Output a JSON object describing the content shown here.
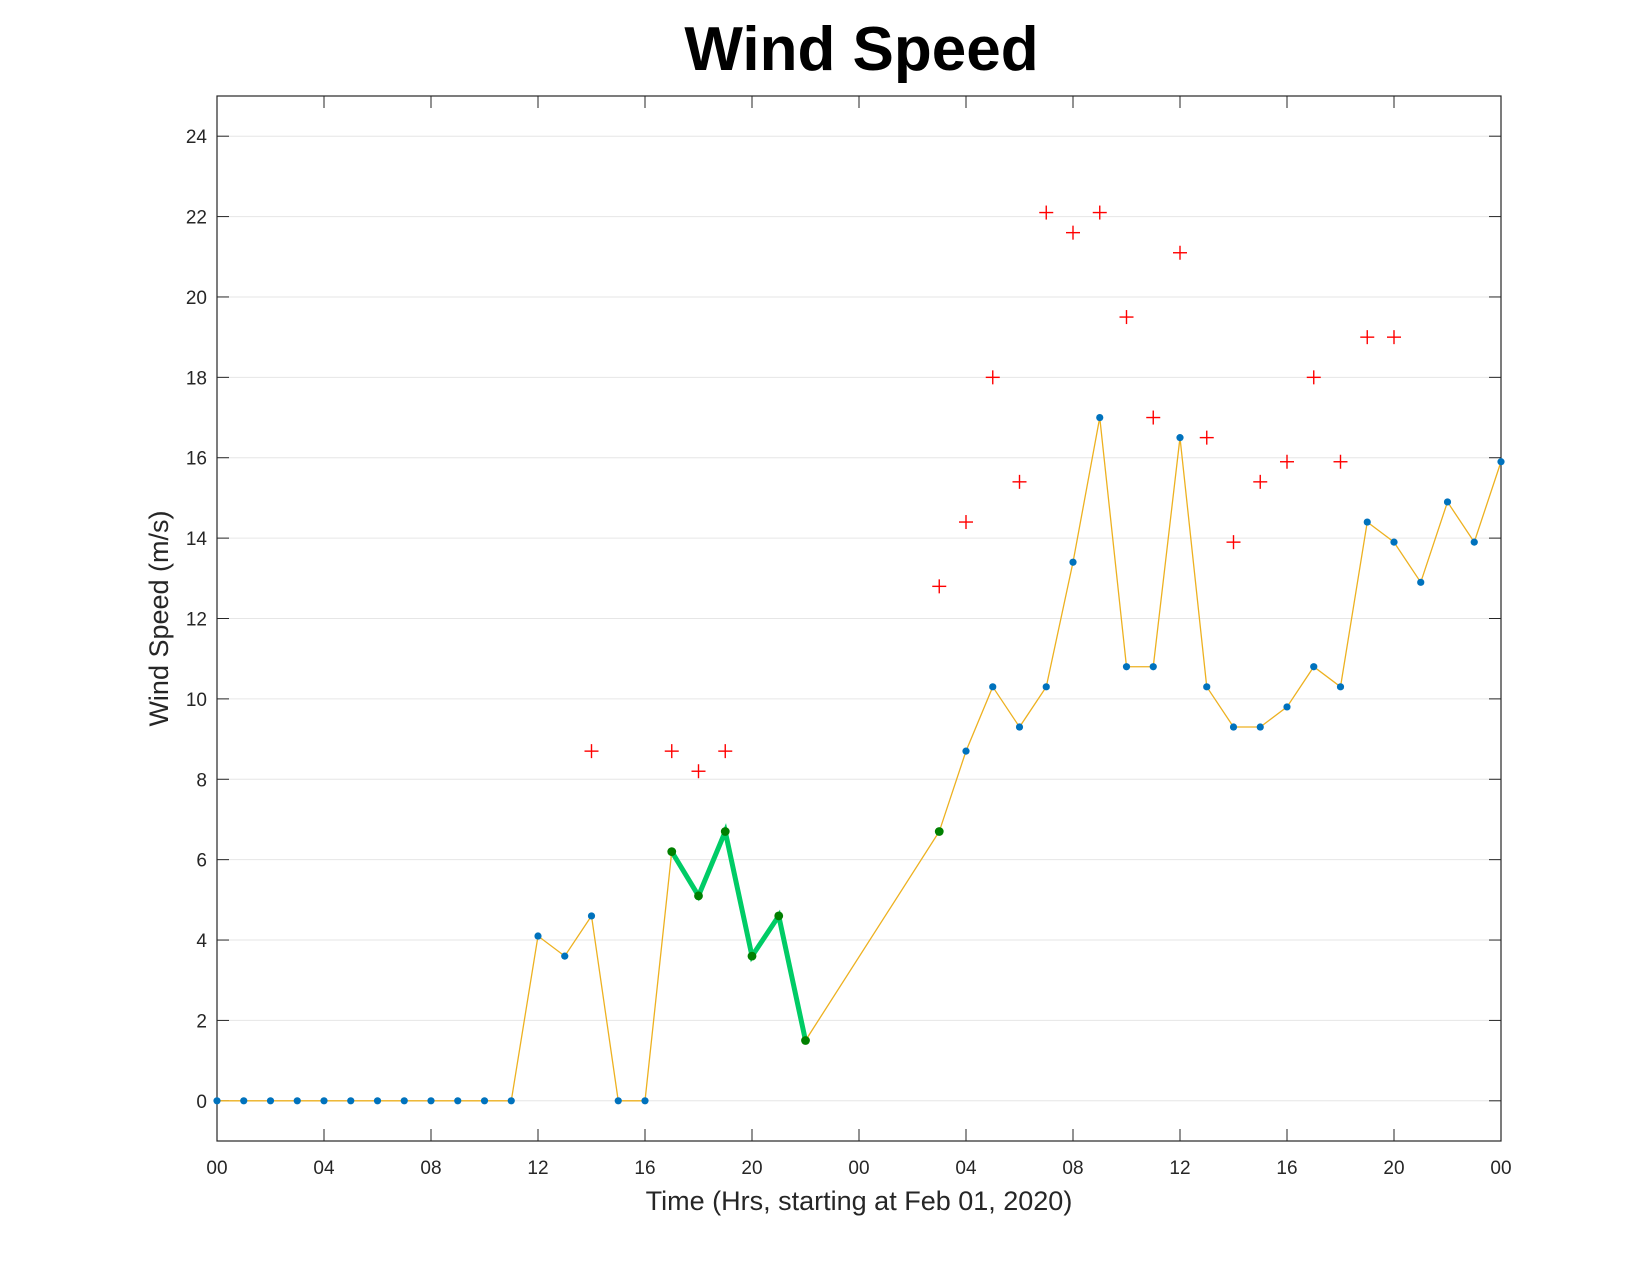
{
  "chart_data": {
    "type": "line",
    "title": "Wind Speed",
    "xlabel": "Time (Hrs, starting at Feb 01, 2020)",
    "ylabel": "Wind Speed (m/s)",
    "x_unit": "hours",
    "xlim": [
      0,
      48
    ],
    "ylim": [
      -1,
      25
    ],
    "x_tick_values": [
      0,
      4,
      8,
      12,
      16,
      20,
      24,
      28,
      32,
      36,
      40,
      44,
      48
    ],
    "x_tick_labels": [
      "00",
      "04",
      "08",
      "12",
      "16",
      "20",
      "00",
      "04",
      "08",
      "12",
      "16",
      "20",
      "00"
    ],
    "y_ticks": [
      0,
      2,
      4,
      6,
      8,
      10,
      12,
      14,
      16,
      18,
      20,
      22,
      24
    ],
    "grid": "horizontal",
    "series": [
      {
        "role": "main",
        "line_color": "#EDB120",
        "marker_color": "#0072BD",
        "x": [
          0,
          1,
          2,
          3,
          4,
          5,
          6,
          7,
          8,
          9,
          10,
          11,
          12,
          13,
          14,
          15,
          16,
          17,
          18,
          19,
          20,
          21,
          22,
          27,
          28,
          29,
          30,
          31,
          32,
          33,
          34,
          35,
          36,
          37,
          38,
          39,
          40,
          41,
          42,
          43,
          44,
          45,
          46,
          47,
          48
        ],
        "y": [
          0,
          0,
          0,
          0,
          0,
          0,
          0,
          0,
          0,
          0,
          0,
          0,
          4.1,
          3.6,
          4.6,
          0,
          0,
          6.2,
          5.1,
          6.7,
          3.6,
          4.6,
          1.5,
          6.7,
          8.7,
          10.3,
          9.3,
          10.3,
          13.4,
          17.0,
          10.8,
          10.8,
          16.5,
          10.3,
          9.3,
          9.3,
          9.8,
          10.8,
          10.3,
          14.4,
          13.9,
          12.9,
          14.9,
          13.9,
          15.9
        ]
      },
      {
        "role": "highlight",
        "line_color": "#00CC66",
        "marker_color": "#008000",
        "x": [
          17,
          18,
          19,
          20,
          21,
          22
        ],
        "y": [
          6.2,
          5.1,
          6.7,
          3.6,
          4.6,
          1.5
        ]
      },
      {
        "role": "highlight-point",
        "marker_color": "#008000",
        "x": [
          27
        ],
        "y": [
          6.7
        ]
      },
      {
        "role": "gust",
        "marker": "plus",
        "marker_color": "#FF0000",
        "x": [
          14,
          17,
          18,
          19,
          27,
          28,
          29,
          30,
          31,
          32,
          33,
          34,
          35,
          36,
          37,
          38,
          39,
          40,
          41,
          42,
          43,
          44
        ],
        "y": [
          8.7,
          8.7,
          8.2,
          8.7,
          12.8,
          14.4,
          18.0,
          15.4,
          22.1,
          21.6,
          22.1,
          19.5,
          17.0,
          21.1,
          16.5,
          13.9,
          15.4,
          15.9,
          18.0,
          15.9,
          19.0,
          19.0
        ]
      }
    ]
  }
}
